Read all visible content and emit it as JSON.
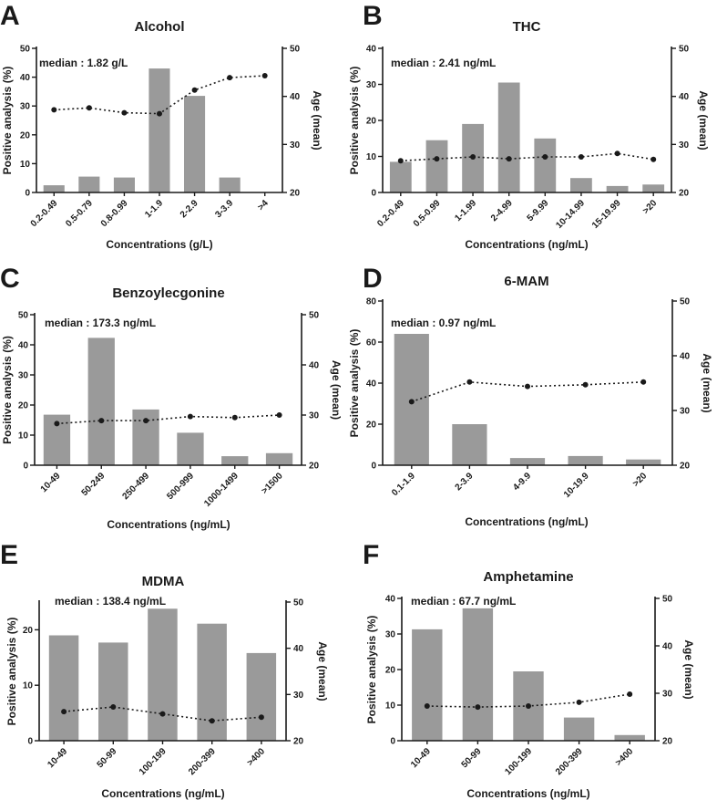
{
  "chart_data": [
    {
      "type": "bar",
      "panel": "A",
      "title": "Alcohol",
      "median_label": "median : 1.82 g/L",
      "xlabel": "Concentrations (g/L)",
      "ylabel": "Positive analysis (%)",
      "y2label": "Age (mean)",
      "categories": [
        "0.2-0.49",
        "0.5-0.79",
        "0.8-0.99",
        "1-1.9",
        "2-2.9",
        "3-3.9",
        ">4"
      ],
      "ylim": [
        0,
        50
      ],
      "yticks": [
        0,
        10,
        20,
        30,
        40,
        50
      ],
      "y2lim": [
        20,
        50
      ],
      "y2ticks": [
        20,
        30,
        40,
        50
      ],
      "series": [
        {
          "name": "Positive analysis (%)",
          "kind": "bar",
          "values": [
            2.5,
            5.5,
            5.2,
            43.0,
            33.5,
            5.2,
            0
          ]
        },
        {
          "name": "Age (mean)",
          "kind": "line",
          "axis": "right",
          "values": [
            37.2,
            37.6,
            36.6,
            36.4,
            41.3,
            43.9,
            44.3
          ]
        }
      ]
    },
    {
      "type": "bar",
      "panel": "B",
      "title": "THC",
      "median_label": "median : 2.41 ng/mL",
      "xlabel": "Concentrations (ng/mL)",
      "ylabel": "Positive analysis (%)",
      "y2label": "Age (mean)",
      "categories": [
        "0.2-0.49",
        "0.5-0.99",
        "1-1.99",
        "2-4.99",
        "5-9.99",
        "10-14.99",
        "15-19.99",
        ">20"
      ],
      "ylim": [
        0,
        40
      ],
      "yticks": [
        0,
        10,
        20,
        30,
        40
      ],
      "y2lim": [
        20,
        50
      ],
      "y2ticks": [
        20,
        30,
        40,
        50
      ],
      "series": [
        {
          "name": "Positive analysis (%)",
          "kind": "bar",
          "values": [
            8.5,
            14.5,
            19.0,
            30.5,
            15.0,
            4.0,
            1.8,
            2.2
          ]
        },
        {
          "name": "Age (mean)",
          "kind": "line",
          "axis": "right",
          "values": [
            26.6,
            27.0,
            27.4,
            27.0,
            27.4,
            27.4,
            28.1,
            26.9
          ]
        }
      ]
    },
    {
      "type": "bar",
      "panel": "C",
      "title": "Benzoylecgonine",
      "median_label": "median : 173.3 ng/mL",
      "xlabel": "Concentrations (ng/mL)",
      "ylabel": "Positive analysis (%)",
      "y2label": "Age (mean)",
      "categories": [
        "10-49",
        "50-249",
        "250-499",
        "500-999",
        "1000-1499",
        ">1500"
      ],
      "ylim": [
        0,
        50
      ],
      "yticks": [
        0,
        10,
        20,
        30,
        40,
        50
      ],
      "y2lim": [
        20,
        50
      ],
      "y2ticks": [
        20,
        30,
        40,
        50
      ],
      "series": [
        {
          "name": "Positive analysis (%)",
          "kind": "bar",
          "values": [
            16.8,
            42.3,
            18.5,
            10.8,
            3.0,
            4.0
          ]
        },
        {
          "name": "Age (mean)",
          "kind": "line",
          "axis": "right",
          "values": [
            28.3,
            28.9,
            28.9,
            29.7,
            29.5,
            30.0
          ]
        }
      ]
    },
    {
      "type": "bar",
      "panel": "D",
      "title": "6-MAM",
      "median_label": "median : 0.97 ng/mL",
      "xlabel": "Concentrations (ng/mL)",
      "ylabel": "Positive analysis (%)",
      "y2label": "Age (mean)",
      "categories": [
        "0.1-1.9",
        "2-3.9",
        "4-9.9",
        "10-19.9",
        ">20"
      ],
      "ylim": [
        0,
        80
      ],
      "yticks": [
        0,
        20,
        40,
        60,
        80
      ],
      "y2lim": [
        20,
        50
      ],
      "y2ticks": [
        20,
        30,
        40,
        50
      ],
      "series": [
        {
          "name": "Positive analysis (%)",
          "kind": "bar",
          "values": [
            64.0,
            20.0,
            3.5,
            4.5,
            2.8
          ]
        },
        {
          "name": "Age (mean)",
          "kind": "line",
          "axis": "right",
          "values": [
            31.6,
            35.2,
            34.4,
            34.7,
            35.2
          ]
        }
      ]
    },
    {
      "type": "bar",
      "panel": "E",
      "title": "MDMA",
      "median_label": "median : 138.4 ng/mL",
      "xlabel": "Concentrations (ng/mL)",
      "ylabel": "Positive analysis (%)",
      "y2label": "Age (mean)",
      "categories": [
        "10-49",
        "50-99",
        "100-199",
        "200-399",
        ">400"
      ],
      "ylim": [
        0,
        25
      ],
      "yticks": [
        0,
        10,
        20
      ],
      "y2lim": [
        20,
        50
      ],
      "y2ticks": [
        20,
        30,
        40,
        50
      ],
      "series": [
        {
          "name": "Positive analysis (%)",
          "kind": "bar",
          "values": [
            19.0,
            17.7,
            23.8,
            21.1,
            15.8
          ]
        },
        {
          "name": "Age (mean)",
          "kind": "line",
          "axis": "right",
          "values": [
            26.3,
            27.3,
            25.8,
            24.3,
            25.1
          ]
        }
      ]
    },
    {
      "type": "bar",
      "panel": "F",
      "title": "Amphetamine",
      "median_label": "median : 67.7 ng/mL",
      "xlabel": "Concentrations (ng/mL)",
      "ylabel": "Positive analysis (%)",
      "y2label": "Age (mean)",
      "categories": [
        "10-49",
        "50-99",
        "100-199",
        "200-399",
        ">400"
      ],
      "ylim": [
        0,
        40
      ],
      "yticks": [
        0,
        10,
        20,
        30,
        40
      ],
      "y2lim": [
        20,
        50
      ],
      "y2ticks": [
        20,
        30,
        40,
        50
      ],
      "series": [
        {
          "name": "Positive analysis (%)",
          "kind": "bar",
          "values": [
            31.3,
            37.2,
            19.5,
            6.5,
            1.6
          ]
        },
        {
          "name": "Age (mean)",
          "kind": "line",
          "axis": "right",
          "values": [
            27.3,
            27.1,
            27.3,
            28.1,
            29.8
          ]
        }
      ]
    }
  ]
}
